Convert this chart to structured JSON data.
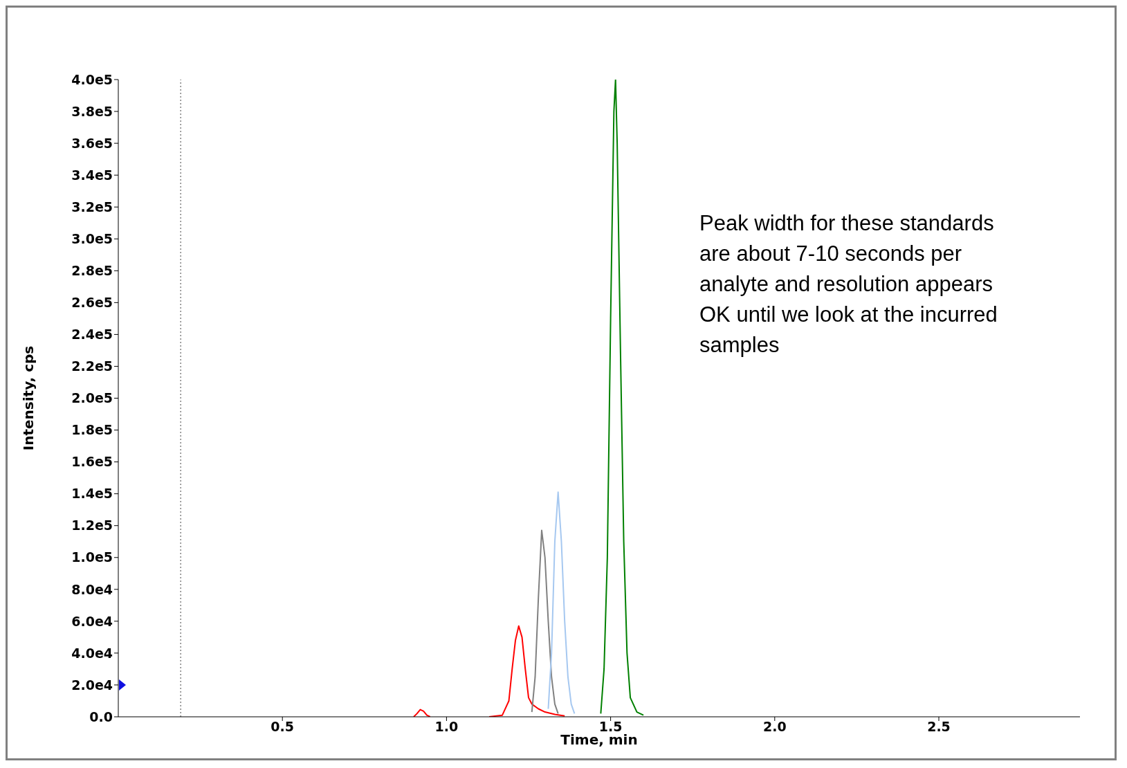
{
  "chart_data": {
    "type": "line",
    "xlabel": "Time, min",
    "ylabel": "Intensity, cps",
    "annotations": [
      "Peak width for these standards are about 7-10 seconds per analyte and resolution appears OK until we look at the incurred samples"
    ],
    "xlim": [
      0,
      2.93
    ],
    "xticks": [
      {
        "value": 0.5,
        "label": "0.5"
      },
      {
        "value": 1,
        "label": "1.0"
      },
      {
        "value": 1.5,
        "label": "1.5"
      },
      {
        "value": 2,
        "label": "2.0"
      },
      {
        "value": 2.5,
        "label": "2.5"
      }
    ],
    "ylim": [
      0,
      400000
    ],
    "yticks": [
      {
        "value": 0,
        "label": "0.0"
      },
      {
        "value": 20000,
        "label": "2.0e4"
      },
      {
        "value": 40000,
        "label": "4.0e4"
      },
      {
        "value": 60000,
        "label": "6.0e4"
      },
      {
        "value": 80000,
        "label": "8.0e4"
      },
      {
        "value": 100000,
        "label": "1.0e5"
      },
      {
        "value": 120000,
        "label": "1.2e5"
      },
      {
        "value": 140000,
        "label": "1.4e5"
      },
      {
        "value": 160000,
        "label": "1.6e5"
      },
      {
        "value": 180000,
        "label": "1.8e5"
      },
      {
        "value": 200000,
        "label": "2.0e5"
      },
      {
        "value": 220000,
        "label": "2.2e5"
      },
      {
        "value": 240000,
        "label": "2.4e5"
      },
      {
        "value": 260000,
        "label": "2.6e5"
      },
      {
        "value": 280000,
        "label": "2.8e5"
      },
      {
        "value": 300000,
        "label": "3.0e5"
      },
      {
        "value": 320000,
        "label": "3.2e5"
      },
      {
        "value": 340000,
        "label": "3.4e5"
      },
      {
        "value": 360000,
        "label": "3.6e5"
      },
      {
        "value": 380000,
        "label": "3.8e5"
      },
      {
        "value": 400000,
        "label": "4.0e5"
      }
    ],
    "grid": false,
    "legend": false,
    "marker": "none",
    "line_style": "solid",
    "ref_lines": [
      {
        "axis": "x",
        "value": 0.19,
        "line_style": "dotted",
        "color": "#404040"
      }
    ],
    "series": [
      {
        "color": "#ff0000",
        "x": [
          0.9,
          0.91,
          0.92,
          0.93,
          0.94,
          0.95,
          null,
          1.13,
          1.17,
          1.19,
          1.2,
          1.21,
          1.22,
          1.23,
          1.24,
          1.25,
          1.26,
          1.28,
          1.3,
          1.33,
          1.36
        ],
        "values": [
          0,
          2000,
          4500,
          3500,
          1000,
          0,
          null,
          0,
          1000,
          10000,
          30000,
          48000,
          57000,
          50000,
          30000,
          12000,
          8000,
          5000,
          3000,
          1500,
          500
        ]
      },
      {
        "color": "#808080",
        "x": [
          1.26,
          1.27,
          1.28,
          1.29,
          1.3,
          1.31,
          1.32,
          1.33,
          1.34
        ],
        "values": [
          3000,
          25000,
          75000,
          117000,
          100000,
          60000,
          25000,
          8000,
          2000
        ]
      },
      {
        "color": "#a6c8f0",
        "x": [
          1.31,
          1.32,
          1.33,
          1.34,
          1.35,
          1.36,
          1.37,
          1.38,
          1.39
        ],
        "values": [
          5000,
          40000,
          110000,
          141000,
          110000,
          60000,
          25000,
          8000,
          2000
        ]
      },
      {
        "color": "#008000",
        "x": [
          1.47,
          1.48,
          1.49,
          1.5,
          1.51,
          1.515,
          1.52,
          1.53,
          1.54,
          1.55,
          1.56,
          1.58,
          1.6
        ],
        "values": [
          2000,
          30000,
          100000,
          250000,
          380000,
          400000,
          360000,
          230000,
          110000,
          40000,
          12000,
          3000,
          1000
        ]
      }
    ]
  }
}
